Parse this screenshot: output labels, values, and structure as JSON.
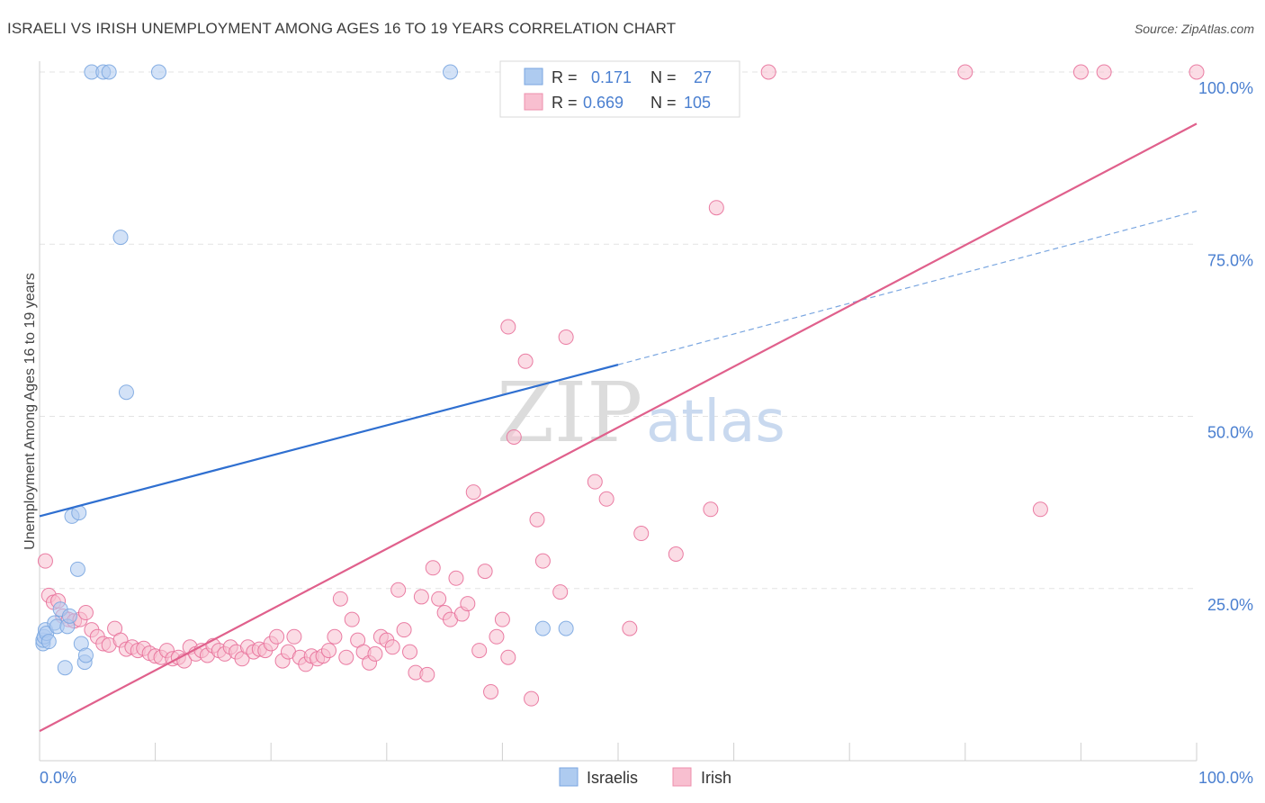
{
  "header": {
    "title": "ISRAELI VS IRISH UNEMPLOYMENT AMONG AGES 16 TO 19 YEARS CORRELATION CHART",
    "source": "Source: ZipAtlas.com"
  },
  "watermark": {
    "zip": "ZIP",
    "atlas": "atlas"
  },
  "legend_top": {
    "rows": [
      {
        "r_label": "R =",
        "r_value": "0.171",
        "n_label": "N =",
        "n_value": "27",
        "color": "#aecbf0",
        "stroke": "#7aa6e0"
      },
      {
        "r_label": "R =",
        "r_value": "0.669",
        "n_label": "N =",
        "n_value": "105",
        "color": "#f8bfd0",
        "stroke": "#ee8fac"
      }
    ]
  },
  "legend_bottom": {
    "items": [
      {
        "label": "Israelis",
        "color": "#aecbf0",
        "stroke": "#7aa6e0"
      },
      {
        "label": "Irish",
        "color": "#f8bfd0",
        "stroke": "#ee8fac"
      }
    ]
  },
  "chart_data": {
    "type": "scatter",
    "title": "ISRAELI VS IRISH UNEMPLOYMENT AMONG AGES 16 TO 19 YEARS CORRELATION CHART",
    "xlabel": "",
    "ylabel": "Unemployment Among Ages 16 to 19 years",
    "xlim": [
      0,
      100
    ],
    "ylim": [
      0,
      100
    ],
    "x_tick_labels": [
      "0.0%",
      "100.0%"
    ],
    "y_ticks": [
      25,
      50,
      75,
      100
    ],
    "y_tick_labels": [
      "25.0%",
      "50.0%",
      "75.0%",
      "100.0%"
    ],
    "grid": true,
    "series": [
      {
        "name": "Israelis",
        "color": "#7aa6e0",
        "fill": "#aecbf0",
        "points": [
          [
            0.3,
            17
          ],
          [
            0.3,
            17.5
          ],
          [
            0.4,
            18
          ],
          [
            0.5,
            19
          ],
          [
            0.6,
            18.5
          ],
          [
            0.8,
            17.3
          ],
          [
            1.3,
            20
          ],
          [
            1.5,
            19.5
          ],
          [
            1.8,
            22
          ],
          [
            2.2,
            13.5
          ],
          [
            2.4,
            19.5
          ],
          [
            2.6,
            21
          ],
          [
            2.8,
            35.5
          ],
          [
            3.3,
            27.8
          ],
          [
            3.4,
            36
          ],
          [
            3.6,
            17
          ],
          [
            3.9,
            14.3
          ],
          [
            4.0,
            15.3
          ],
          [
            4.5,
            100
          ],
          [
            5.5,
            100
          ],
          [
            6,
            100
          ],
          [
            7,
            76
          ],
          [
            7.5,
            53.5
          ],
          [
            10.3,
            100
          ],
          [
            35.5,
            100
          ],
          [
            43.5,
            19.2
          ],
          [
            45.5,
            19.2
          ]
        ],
        "trend": {
          "x0": 0,
          "y0": 35.5,
          "x1": 50,
          "y1": 57.5,
          "x_ext": 100,
          "y_ext": 79.8
        }
      },
      {
        "name": "Irish",
        "color": "#e8709a",
        "fill": "#f8bfd0",
        "points": [
          [
            0.5,
            29
          ],
          [
            0.8,
            24
          ],
          [
            1.2,
            23
          ],
          [
            1.6,
            23.2
          ],
          [
            2,
            21
          ],
          [
            2.5,
            20.5
          ],
          [
            3,
            20.3
          ],
          [
            3.5,
            20.5
          ],
          [
            4,
            21.5
          ],
          [
            4.5,
            19
          ],
          [
            5,
            18
          ],
          [
            5.5,
            17
          ],
          [
            6,
            16.8
          ],
          [
            6.5,
            19.2
          ],
          [
            7,
            17.5
          ],
          [
            7.5,
            16.2
          ],
          [
            8,
            16.5
          ],
          [
            8.5,
            16
          ],
          [
            9,
            16.3
          ],
          [
            9.5,
            15.6
          ],
          [
            10,
            15.2
          ],
          [
            10.5,
            15
          ],
          [
            11,
            16
          ],
          [
            11.5,
            14.8
          ],
          [
            12,
            15
          ],
          [
            12.5,
            14.5
          ],
          [
            13,
            16.5
          ],
          [
            13.5,
            15.5
          ],
          [
            14,
            16
          ],
          [
            14.5,
            15.3
          ],
          [
            15,
            16.7
          ],
          [
            15.5,
            16
          ],
          [
            16,
            15.5
          ],
          [
            16.5,
            16.5
          ],
          [
            17,
            15.8
          ],
          [
            17.5,
            14.8
          ],
          [
            18,
            16.5
          ],
          [
            18.5,
            15.8
          ],
          [
            19,
            16.2
          ],
          [
            19.5,
            16
          ],
          [
            20,
            17
          ],
          [
            20.5,
            18
          ],
          [
            21,
            14.5
          ],
          [
            21.5,
            15.8
          ],
          [
            22,
            18
          ],
          [
            22.5,
            15
          ],
          [
            23,
            14
          ],
          [
            23.5,
            15.2
          ],
          [
            24,
            14.8
          ],
          [
            24.5,
            15.2
          ],
          [
            25,
            16
          ],
          [
            25.5,
            18
          ],
          [
            26,
            23.5
          ],
          [
            26.5,
            15
          ],
          [
            27,
            20.5
          ],
          [
            27.5,
            17.5
          ],
          [
            28,
            15.8
          ],
          [
            28.5,
            14.2
          ],
          [
            29,
            15.5
          ],
          [
            29.5,
            18
          ],
          [
            30,
            17.5
          ],
          [
            30.5,
            16.5
          ],
          [
            31,
            24.8
          ],
          [
            31.5,
            19
          ],
          [
            32,
            15.8
          ],
          [
            32.5,
            12.8
          ],
          [
            33,
            23.8
          ],
          [
            33.5,
            12.5
          ],
          [
            34,
            28
          ],
          [
            34.5,
            23.5
          ],
          [
            35,
            21.5
          ],
          [
            35.5,
            20.5
          ],
          [
            36,
            26.5
          ],
          [
            36.5,
            21.3
          ],
          [
            37,
            22.8
          ],
          [
            37.5,
            39
          ],
          [
            38,
            16
          ],
          [
            38.5,
            27.5
          ],
          [
            39,
            10
          ],
          [
            39.5,
            18
          ],
          [
            40,
            20.5
          ],
          [
            40.5,
            15
          ],
          [
            40.5,
            63
          ],
          [
            41,
            47
          ],
          [
            42,
            58
          ],
          [
            42.5,
            9
          ],
          [
            43,
            35
          ],
          [
            43.5,
            29
          ],
          [
            45,
            24.5
          ],
          [
            45.5,
            61.5
          ],
          [
            48,
            40.5
          ],
          [
            49,
            38
          ],
          [
            51,
            19.2
          ],
          [
            52,
            33
          ],
          [
            55,
            30
          ],
          [
            58,
            36.5
          ],
          [
            58.5,
            80.3
          ],
          [
            63,
            100
          ],
          [
            80,
            100
          ],
          [
            86.5,
            36.5
          ],
          [
            90,
            100
          ],
          [
            92,
            100
          ],
          [
            100,
            100
          ],
          [
            44,
            100
          ],
          [
            52.5,
            100
          ]
        ],
        "trend": {
          "x0": 0,
          "y0": 4.3,
          "x1": 100,
          "y1": 92.5
        }
      }
    ]
  }
}
